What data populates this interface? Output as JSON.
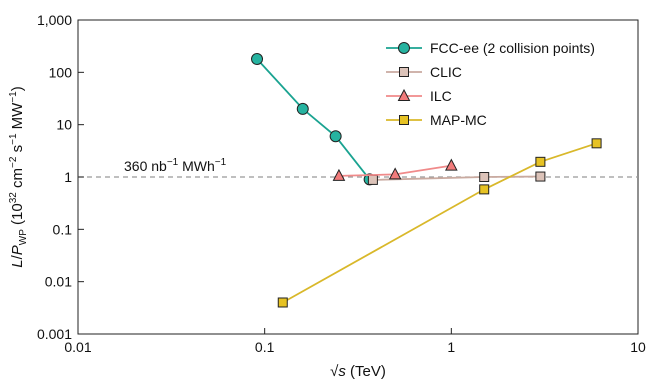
{
  "chart_data": {
    "type": "line",
    "xscale": "log",
    "yscale": "log",
    "xlim": [
      0.01,
      10
    ],
    "ylim": [
      0.001,
      1000
    ],
    "xticks": [
      {
        "value": 0.01,
        "label": "0.01"
      },
      {
        "value": 0.1,
        "label": "0.1"
      },
      {
        "value": 1,
        "label": "1"
      },
      {
        "value": 10,
        "label": "10"
      }
    ],
    "yticks": [
      {
        "value": 0.001,
        "label": "0.001"
      },
      {
        "value": 0.01,
        "label": "0.01"
      },
      {
        "value": 0.1,
        "label": "0.1"
      },
      {
        "value": 1,
        "label": "1"
      },
      {
        "value": 10,
        "label": "10"
      },
      {
        "value": 100,
        "label": "100"
      },
      {
        "value": 1000,
        "label": "1,000"
      }
    ],
    "xlabel": {
      "sqrt": "√",
      "var": "s",
      "rest": " (TeV)"
    },
    "ylabel": {
      "L": "L",
      "slash": "/",
      "P": "P",
      "sub": "WP",
      "open": " (10",
      "exp1": "32",
      "mid1": " cm",
      "exp2": "−2",
      "mid2": " s",
      "exp3": "−1",
      "mid3": " MW",
      "exp4": "−1",
      "close": ")"
    },
    "legend_position": "top-right",
    "grid": false,
    "reference_line": {
      "y": 1,
      "label_main": "360 nb",
      "label_exp1": "−1",
      "label_mid": " MWh",
      "label_exp2": "−1",
      "color": "#999999"
    },
    "series": [
      {
        "name": "FCC-ee (2 collision points)",
        "marker": "circle",
        "line_color": "#1aa391",
        "fill_color": "#26b3a0",
        "points": [
          [
            0.091,
            180
          ],
          [
            0.16,
            20
          ],
          [
            0.24,
            6
          ],
          [
            0.365,
            0.9
          ]
        ]
      },
      {
        "name": "CLIC",
        "marker": "square",
        "line_color": "#c9aaa0",
        "fill_color": "#dcc3b9",
        "points": [
          [
            0.38,
            0.88
          ],
          [
            1.5,
            1.0
          ],
          [
            3.0,
            1.02
          ]
        ]
      },
      {
        "name": "ILC",
        "marker": "triangle",
        "line_color": "#f08a8a",
        "fill_color": "#f27b7b",
        "points": [
          [
            0.25,
            1.05
          ],
          [
            0.5,
            1.12
          ],
          [
            1.0,
            1.65
          ]
        ]
      },
      {
        "name": "MAP-MC",
        "marker": "square",
        "line_color": "#d9b82a",
        "fill_color": "#e6c224",
        "points": [
          [
            0.125,
            0.004
          ],
          [
            1.5,
            0.58
          ],
          [
            3.0,
            1.95
          ],
          [
            6.0,
            4.4
          ]
        ]
      }
    ]
  }
}
